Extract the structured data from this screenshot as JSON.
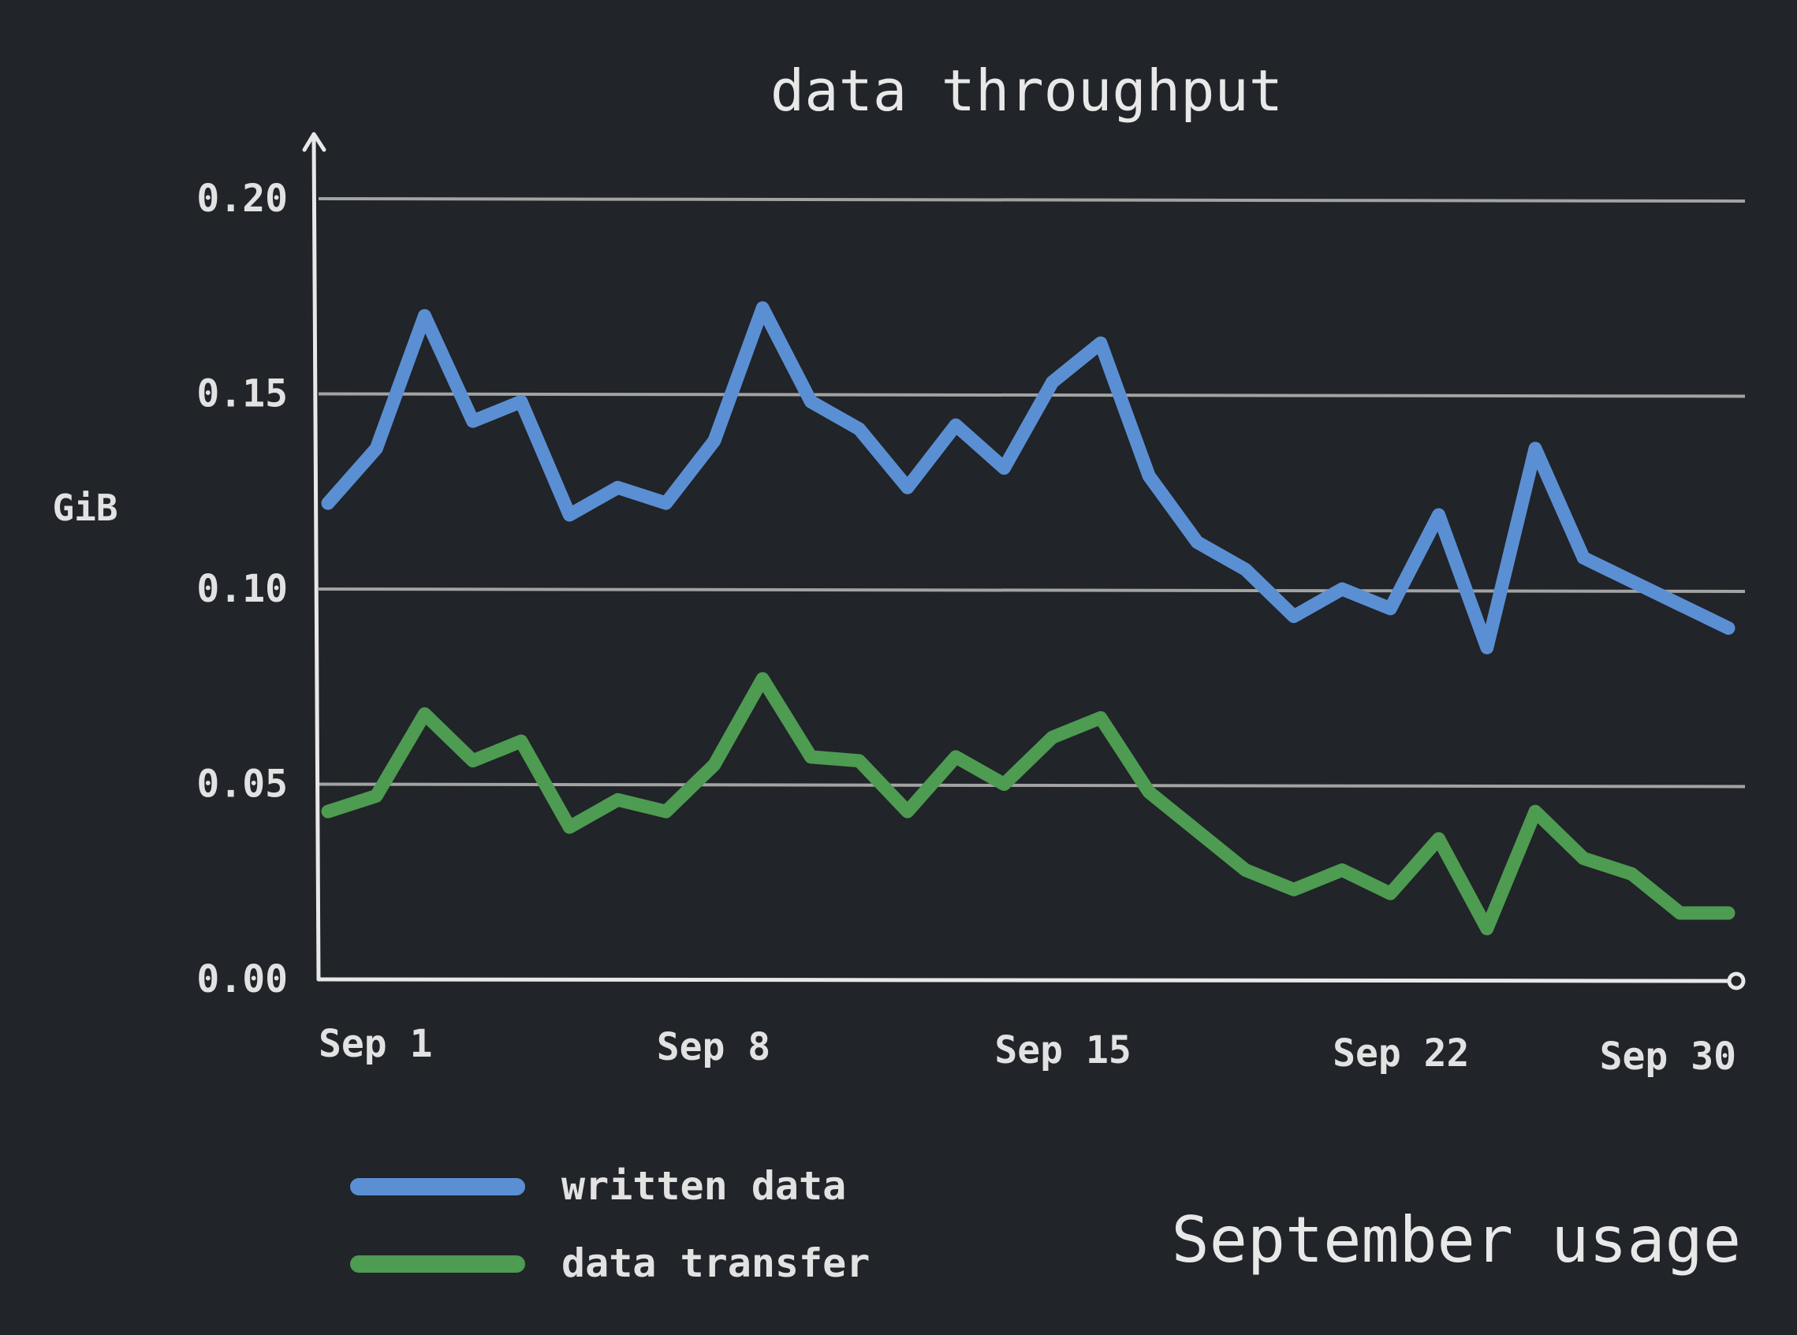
{
  "chart_data": {
    "type": "line",
    "title": "data throughput",
    "subtitle": "September usage",
    "xlabel": "",
    "ylabel": "GiB",
    "x": [
      1,
      2,
      3,
      4,
      5,
      6,
      7,
      8,
      9,
      10,
      11,
      12,
      13,
      14,
      15,
      16,
      17,
      18,
      19,
      20,
      21,
      22,
      23,
      24,
      25,
      26,
      27,
      28,
      29,
      30
    ],
    "xlim": [
      1,
      30
    ],
    "ylim": [
      0,
      0.2
    ],
    "x_ticks": [
      {
        "value": 1,
        "label": "Sep 1"
      },
      {
        "value": 8,
        "label": "Sep 8"
      },
      {
        "value": 15,
        "label": "Sep 15"
      },
      {
        "value": 22,
        "label": "Sep 22"
      },
      {
        "value": 30,
        "label": "Sep 30"
      }
    ],
    "y_ticks": [
      {
        "value": 0,
        "label": "0.00"
      },
      {
        "value": 0.05,
        "label": "0.05"
      },
      {
        "value": 0.1,
        "label": "0.10"
      },
      {
        "value": 0.15,
        "label": "0.15"
      },
      {
        "value": 0.2,
        "label": "0.20"
      }
    ],
    "grid": true,
    "legend_position": "bottom-left",
    "series": [
      {
        "name": "written data",
        "color": "#5b8fd4",
        "values": [
          0.122,
          0.136,
          0.17,
          0.143,
          0.148,
          0.119,
          0.126,
          0.122,
          0.138,
          0.172,
          0.148,
          0.141,
          0.126,
          0.142,
          0.131,
          0.153,
          0.163,
          0.129,
          0.112,
          0.105,
          0.093,
          0.1,
          0.095,
          0.119,
          0.085,
          0.136,
          0.108,
          0.102,
          0.096,
          0.09
        ]
      },
      {
        "name": "data transfer",
        "color": "#4e9b52",
        "values": [
          0.043,
          0.047,
          0.068,
          0.056,
          0.061,
          0.039,
          0.046,
          0.043,
          0.055,
          0.077,
          0.057,
          0.056,
          0.043,
          0.057,
          0.05,
          0.062,
          0.067,
          0.048,
          0.038,
          0.028,
          0.023,
          0.028,
          0.022,
          0.036,
          0.013,
          0.043,
          0.031,
          0.027,
          0.017,
          0.017
        ]
      }
    ]
  }
}
